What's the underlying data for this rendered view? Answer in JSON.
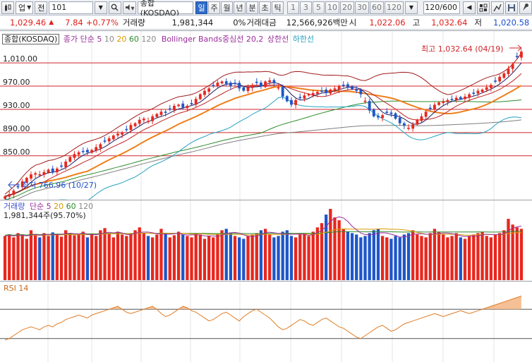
{
  "toolbar": {
    "code": "101",
    "market_select": "업",
    "prev_label": "전",
    "name": "종합(KOSDAQ)",
    "periods": [
      {
        "label": "일",
        "active": true
      },
      {
        "label": "주",
        "active": false
      },
      {
        "label": "월",
        "active": false
      },
      {
        "label": "년",
        "active": false
      },
      {
        "label": "분",
        "active": false
      },
      {
        "label": "초",
        "active": false
      },
      {
        "label": "틱",
        "active": false
      }
    ],
    "intervals": [
      "1",
      "3",
      "5",
      "10",
      "20",
      "30",
      "60",
      "120"
    ],
    "count": "120/600"
  },
  "quote": {
    "price": "1,029.46",
    "change_icon": "up-triangle",
    "change": "7.84",
    "change_pct": "+0.77%",
    "volume_label": "거래량",
    "volume": "1,981,344",
    "volume_ratio": "0%",
    "amount_label": "거래대금",
    "amount": "12,566,926백만",
    "open_label": "시",
    "open": "1,022.06",
    "high_label": "고",
    "high": "1,032.64",
    "low_label": "저",
    "low": "1,020.58"
  },
  "price_legend": {
    "name": "종합(KOSDAQ)",
    "ma_label": "종가 단순 5",
    "ma_10": "10",
    "ma_20": "20",
    "ma_60": "60",
    "ma_120": "120",
    "bb_label": "Bollinger Bands중심선 20,2",
    "bb_upper": "상한선",
    "bb_lower": "하한선"
  },
  "volume_legend": {
    "label": "거래량",
    "ma_label": "단순 5",
    "ma_20": "20",
    "ma_60": "60",
    "ma_120": "120",
    "current": "1,981,344주(95.70%)"
  },
  "rsi_legend": {
    "label": "RSI 14"
  },
  "annotations": {
    "max_label": "최고 1,032.64 (04/19)",
    "min_label": "최저 766.96 (10/27)"
  },
  "colors": {
    "up": "#e8271e",
    "down": "#1f56c8",
    "ma5": "#1a1a60",
    "ma10": "#c32424",
    "ma20": "#ef7f1a",
    "ma60": "#2b8c2b",
    "ma120": "#7f7f7f",
    "bollinger": "#a01c1c",
    "bollinger_lower": "#27a3c2",
    "rsi": "#e07d25"
  },
  "chart_data": [
    {
      "type": "candlestick",
      "title": "종합(KOSDAQ)",
      "period": "daily",
      "candles_count": 120,
      "y_ticks": [
        "1,010.00",
        "970.00",
        "930.00",
        "890.00",
        "850.00"
      ],
      "ylim": [
        778,
        1043
      ],
      "horizontal_lines": [
        1010,
        970,
        930,
        890,
        850
      ],
      "close_series": [
        780,
        784,
        790,
        796,
        806,
        812,
        818,
        820,
        818,
        822,
        826,
        822,
        828,
        832,
        840,
        848,
        853,
        856,
        858,
        856,
        860,
        865,
        870,
        876,
        880,
        885,
        888,
        890,
        895,
        903,
        906,
        912,
        914,
        910,
        918,
        922,
        926,
        924,
        930,
        936,
        938,
        933,
        936,
        940,
        948,
        956,
        962,
        966,
        972,
        976,
        978,
        974,
        970,
        975,
        966,
        962,
        968,
        972,
        976,
        970,
        978,
        980,
        976,
        968,
        952,
        944,
        938,
        946,
        950,
        954,
        956,
        958,
        960,
        962,
        958,
        964,
        966,
        970,
        972,
        968,
        965,
        962,
        956,
        944,
        928,
        918,
        916,
        920,
        924,
        922,
        914,
        906,
        902,
        898,
        904,
        912,
        918,
        926,
        932,
        938,
        942,
        944,
        946,
        948,
        950,
        948,
        952,
        956,
        958,
        962,
        964,
        968,
        972,
        978,
        986,
        992,
        1000,
        1008,
        1020,
        1029.46
      ],
      "max_point": {
        "value": 1032.64,
        "date": "04/19"
      },
      "min_point": {
        "value": 766.96,
        "date": "10/27"
      }
    },
    {
      "type": "bar",
      "title": "거래량",
      "current": "1,981,344주(95.70%)",
      "values": [
        62,
        64,
        60,
        66,
        63,
        58,
        70,
        64,
        60,
        66,
        62,
        67,
        65,
        61,
        70,
        66,
        63,
        64,
        68,
        60,
        65,
        62,
        70,
        73,
        66,
        60,
        68,
        64,
        62,
        65,
        70,
        74,
        66,
        62,
        60,
        64,
        72,
        66,
        60,
        63,
        68,
        64,
        62,
        60,
        66,
        64,
        58,
        62,
        60,
        64,
        70,
        72,
        66,
        62,
        60,
        58,
        62,
        64,
        66,
        70,
        72,
        64,
        60,
        62,
        68,
        70,
        62,
        60,
        64,
        66,
        62,
        68,
        74,
        80,
        92,
        100,
        88,
        84,
        72,
        68,
        66,
        64,
        60,
        62,
        66,
        70,
        72,
        62,
        60,
        58,
        62,
        60,
        64,
        66,
        70,
        64,
        62,
        60,
        66,
        72,
        68,
        64,
        60,
        62,
        66,
        60,
        58,
        62,
        64,
        66,
        68,
        62,
        60,
        64,
        66,
        70,
        86,
        78,
        74,
        72
      ]
    },
    {
      "type": "line",
      "title": "RSI 14",
      "horizontal_lines": [
        70,
        30
      ],
      "ylim": [
        0,
        100
      ],
      "values": [
        28,
        30,
        34,
        38,
        42,
        44,
        46,
        44,
        42,
        46,
        48,
        46,
        50,
        52,
        56,
        58,
        60,
        62,
        60,
        58,
        62,
        64,
        66,
        68,
        70,
        72,
        74,
        70,
        66,
        64,
        66,
        68,
        70,
        72,
        74,
        70,
        64,
        60,
        62,
        66,
        70,
        74,
        72,
        68,
        66,
        62,
        58,
        54,
        56,
        60,
        64,
        66,
        62,
        58,
        54,
        60,
        64,
        68,
        70,
        66,
        62,
        58,
        52,
        46,
        42,
        44,
        48,
        52,
        56,
        54,
        50,
        48,
        52,
        56,
        58,
        54,
        50,
        46,
        44,
        40,
        36,
        32,
        30,
        34,
        38,
        42,
        46,
        48,
        44,
        40,
        42,
        46,
        50,
        52,
        54,
        56,
        58,
        60,
        62,
        64,
        62,
        60,
        62,
        64,
        66,
        68,
        66,
        64,
        66,
        68,
        70,
        72,
        74,
        76,
        78,
        80,
        82,
        84,
        86,
        88
      ]
    }
  ]
}
